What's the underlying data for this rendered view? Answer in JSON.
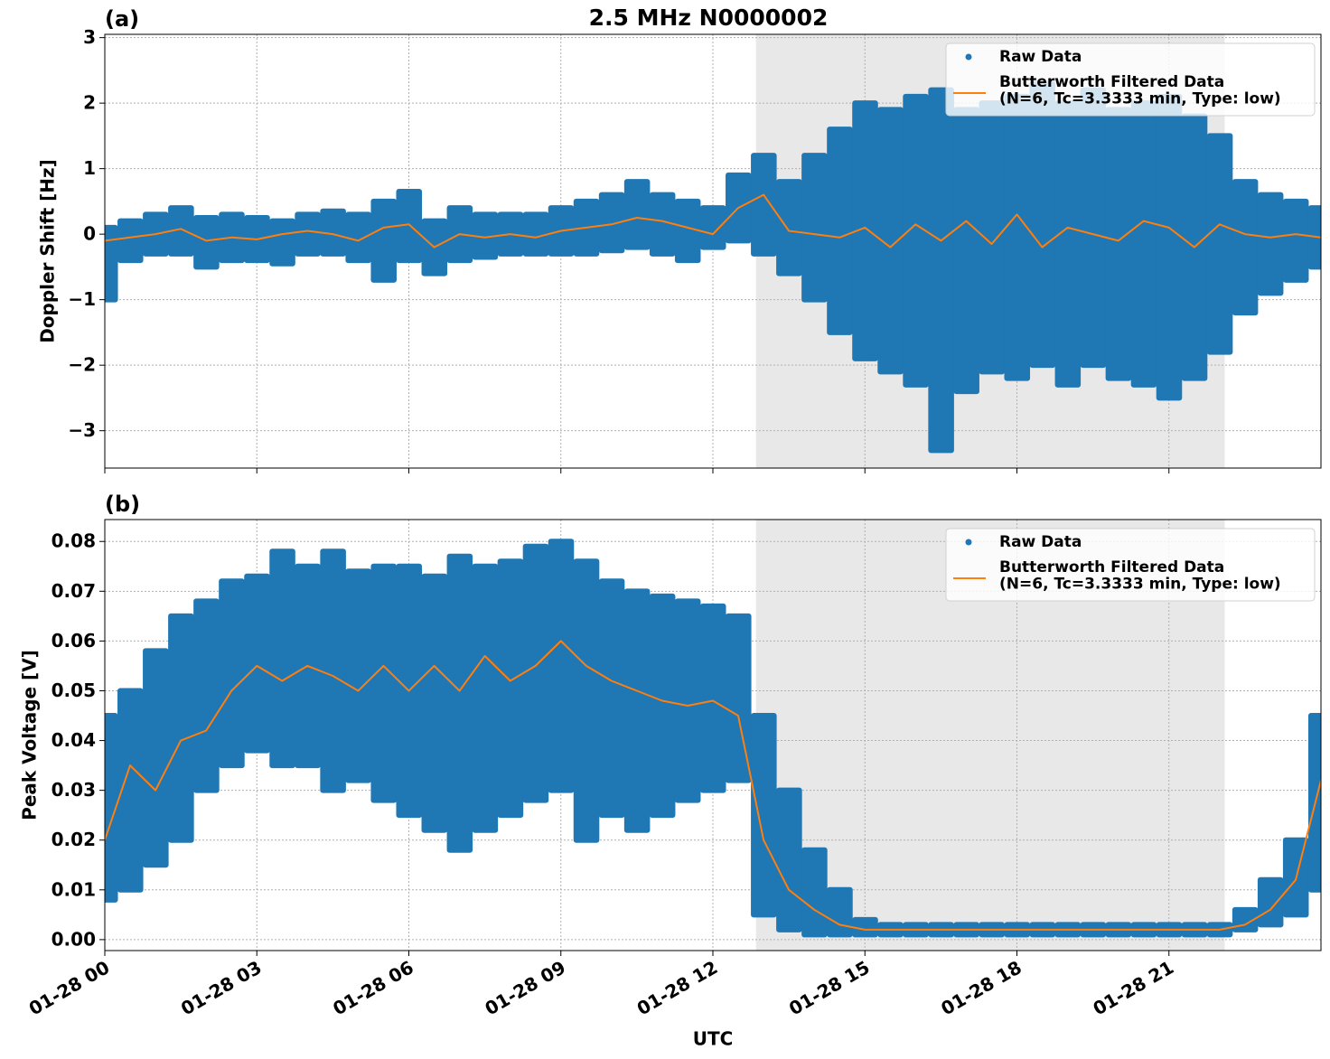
{
  "chart_data": [
    {
      "type": "line",
      "title": "2.5 MHz N0000002",
      "panel_label": "(a)",
      "y_label": "Doppler Shift [Hz]",
      "x": [
        0,
        0.5,
        1,
        1.5,
        2,
        2.5,
        3,
        3.5,
        4,
        4.5,
        5,
        5.5,
        6,
        6.5,
        7,
        7.5,
        8,
        8.5,
        9,
        9.5,
        10,
        10.5,
        11,
        11.5,
        12,
        12.5,
        13,
        13.5,
        14,
        14.5,
        15,
        15.5,
        16,
        16.5,
        17,
        17.5,
        18,
        18.5,
        19,
        19.5,
        20,
        20.5,
        21,
        21.5,
        22,
        22.5,
        23,
        23.5,
        24
      ],
      "series": [
        {
          "name": "Raw Data",
          "color": "#1f77b4",
          "marker": "o",
          "values": [
            [
              0.1,
              -1.0
            ],
            [
              0.2,
              -0.4
            ],
            [
              0.3,
              -0.3
            ],
            [
              0.4,
              -0.3
            ],
            [
              0.25,
              -0.5
            ],
            [
              0.3,
              -0.4
            ],
            [
              0.25,
              -0.4
            ],
            [
              0.2,
              -0.45
            ],
            [
              0.3,
              -0.3
            ],
            [
              0.35,
              -0.3
            ],
            [
              0.3,
              -0.4
            ],
            [
              0.5,
              -0.7
            ],
            [
              0.65,
              -0.4
            ],
            [
              0.2,
              -0.6
            ],
            [
              0.4,
              -0.4
            ],
            [
              0.3,
              -0.35
            ],
            [
              0.3,
              -0.3
            ],
            [
              0.3,
              -0.3
            ],
            [
              0.4,
              -0.3
            ],
            [
              0.5,
              -0.3
            ],
            [
              0.6,
              -0.25
            ],
            [
              0.8,
              -0.2
            ],
            [
              0.6,
              -0.3
            ],
            [
              0.5,
              -0.4
            ],
            [
              0.4,
              -0.2
            ],
            [
              0.9,
              -0.1
            ],
            [
              1.2,
              -0.3
            ],
            [
              0.8,
              -0.6
            ],
            [
              1.2,
              -1.0
            ],
            [
              1.6,
              -1.5
            ],
            [
              2.0,
              -1.9
            ],
            [
              1.9,
              -2.1
            ],
            [
              2.1,
              -2.3
            ],
            [
              2.2,
              -3.3
            ],
            [
              1.9,
              -2.4
            ],
            [
              2.0,
              -2.1
            ],
            [
              2.1,
              -2.2
            ],
            [
              2.3,
              -2.0
            ],
            [
              2.0,
              -2.3
            ],
            [
              2.2,
              -2.0
            ],
            [
              1.9,
              -2.2
            ],
            [
              2.0,
              -2.3
            ],
            [
              2.1,
              -2.5
            ],
            [
              1.8,
              -2.2
            ],
            [
              1.5,
              -1.8
            ],
            [
              0.8,
              -1.2
            ],
            [
              0.6,
              -0.9
            ],
            [
              0.5,
              -0.7
            ],
            [
              0.4,
              -0.5
            ]
          ]
        },
        {
          "name": "Butterworth Filtered Data\n(N=6, Tc=3.3333 min, Type: low)",
          "color": "#ff7f0e",
          "marker": "line",
          "values": [
            -0.1,
            -0.05,
            0,
            0.08,
            -0.1,
            -0.05,
            -0.08,
            0,
            0.05,
            0,
            -0.1,
            0.1,
            0.15,
            -0.2,
            0,
            -0.05,
            0,
            -0.05,
            0.05,
            0.1,
            0.15,
            0.25,
            0.2,
            0.1,
            0,
            0.4,
            0.6,
            0.05,
            0,
            -0.05,
            0.1,
            -0.2,
            0.15,
            -0.1,
            0.2,
            -0.15,
            0.3,
            -0.2,
            0.1,
            0,
            -0.1,
            0.2,
            0.1,
            -0.2,
            0.15,
            0,
            -0.05,
            0,
            -0.05
          ]
        }
      ],
      "xlim": [
        0,
        24
      ],
      "xticks": [
        0,
        3,
        6,
        9,
        12,
        15,
        18,
        21
      ],
      "ylim": [
        -3.57,
        3.05
      ],
      "yticks": [
        {
          "value": -3,
          "label": "−3"
        },
        {
          "value": -2,
          "label": "−2"
        },
        {
          "value": -1,
          "label": "−1"
        },
        0,
        1,
        2,
        3
      ],
      "shaded_span": [
        12.85,
        22.1
      ],
      "grid": true,
      "legend": "upper right"
    },
    {
      "type": "line",
      "panel_label": "(b)",
      "y_label": "Peak Voltage [V]",
      "x_label": "UTC",
      "x": [
        0,
        0.5,
        1,
        1.5,
        2,
        2.5,
        3,
        3.5,
        4,
        4.5,
        5,
        5.5,
        6,
        6.5,
        7,
        7.5,
        8,
        8.5,
        9,
        9.5,
        10,
        10.5,
        11,
        11.5,
        12,
        12.5,
        13,
        13.5,
        14,
        14.5,
        15,
        15.5,
        16,
        16.5,
        17,
        17.5,
        18,
        18.5,
        19,
        19.5,
        20,
        20.5,
        21,
        21.5,
        22,
        22.5,
        23,
        23.5,
        24
      ],
      "series": [
        {
          "name": "Raw Data",
          "color": "#1f77b4",
          "marker": "o",
          "values": [
            [
              0.045,
              0.008
            ],
            [
              0.05,
              0.01
            ],
            [
              0.058,
              0.015
            ],
            [
              0.065,
              0.02
            ],
            [
              0.068,
              0.03
            ],
            [
              0.072,
              0.035
            ],
            [
              0.073,
              0.038
            ],
            [
              0.078,
              0.035
            ],
            [
              0.075,
              0.035
            ],
            [
              0.078,
              0.03
            ],
            [
              0.074,
              0.032
            ],
            [
              0.075,
              0.028
            ],
            [
              0.075,
              0.025
            ],
            [
              0.073,
              0.022
            ],
            [
              0.077,
              0.018
            ],
            [
              0.075,
              0.022
            ],
            [
              0.076,
              0.025
            ],
            [
              0.079,
              0.028
            ],
            [
              0.08,
              0.03
            ],
            [
              0.076,
              0.02
            ],
            [
              0.072,
              0.025
            ],
            [
              0.07,
              0.022
            ],
            [
              0.069,
              0.025
            ],
            [
              0.068,
              0.028
            ],
            [
              0.067,
              0.03
            ],
            [
              0.065,
              0.032
            ],
            [
              0.045,
              0.005
            ],
            [
              0.03,
              0.002
            ],
            [
              0.018,
              0.001
            ],
            [
              0.01,
              0.001
            ],
            [
              0.004,
              0.001
            ],
            [
              0.003,
              0.001
            ],
            [
              0.003,
              0.001
            ],
            [
              0.003,
              0.001
            ],
            [
              0.003,
              0.001
            ],
            [
              0.003,
              0.001
            ],
            [
              0.003,
              0.001
            ],
            [
              0.003,
              0.001
            ],
            [
              0.003,
              0.001
            ],
            [
              0.003,
              0.001
            ],
            [
              0.003,
              0.001
            ],
            [
              0.003,
              0.001
            ],
            [
              0.003,
              0.001
            ],
            [
              0.003,
              0.001
            ],
            [
              0.003,
              0.001
            ],
            [
              0.006,
              0.002
            ],
            [
              0.012,
              0.003
            ],
            [
              0.02,
              0.005
            ],
            [
              0.045,
              0.01
            ]
          ]
        },
        {
          "name": "Butterworth Filtered Data\n(N=6, Tc=3.3333 min, Type: low)",
          "color": "#ff7f0e",
          "marker": "line",
          "values": [
            0.02,
            0.035,
            0.03,
            0.04,
            0.042,
            0.05,
            0.055,
            0.052,
            0.055,
            0.053,
            0.05,
            0.055,
            0.05,
            0.055,
            0.05,
            0.057,
            0.052,
            0.055,
            0.06,
            0.055,
            0.052,
            0.05,
            0.048,
            0.047,
            0.048,
            0.045,
            0.02,
            0.01,
            0.006,
            0.003,
            0.002,
            0.002,
            0.002,
            0.002,
            0.002,
            0.002,
            0.002,
            0.002,
            0.002,
            0.002,
            0.002,
            0.002,
            0.002,
            0.002,
            0.002,
            0.003,
            0.006,
            0.012,
            0.032
          ]
        }
      ],
      "xlim": [
        0,
        24
      ],
      "xticks": [
        {
          "value": 0,
          "label": "01-28 00"
        },
        {
          "value": 3,
          "label": "01-28 03"
        },
        {
          "value": 6,
          "label": "01-28 06"
        },
        {
          "value": 9,
          "label": "01-28 09"
        },
        {
          "value": 12,
          "label": "01-28 12"
        },
        {
          "value": 15,
          "label": "01-28 15"
        },
        {
          "value": 18,
          "label": "01-28 18"
        },
        {
          "value": 21,
          "label": "01-28 21"
        }
      ],
      "ylim": [
        -0.0022,
        0.0844
      ],
      "yticks": [
        {
          "value": 0,
          "label": "0.00"
        },
        0.01,
        0.02,
        0.03,
        0.04,
        0.05,
        0.06,
        0.07,
        0.08
      ],
      "shaded_span": [
        12.85,
        22.1
      ],
      "grid": true,
      "legend": "upper right"
    }
  ]
}
